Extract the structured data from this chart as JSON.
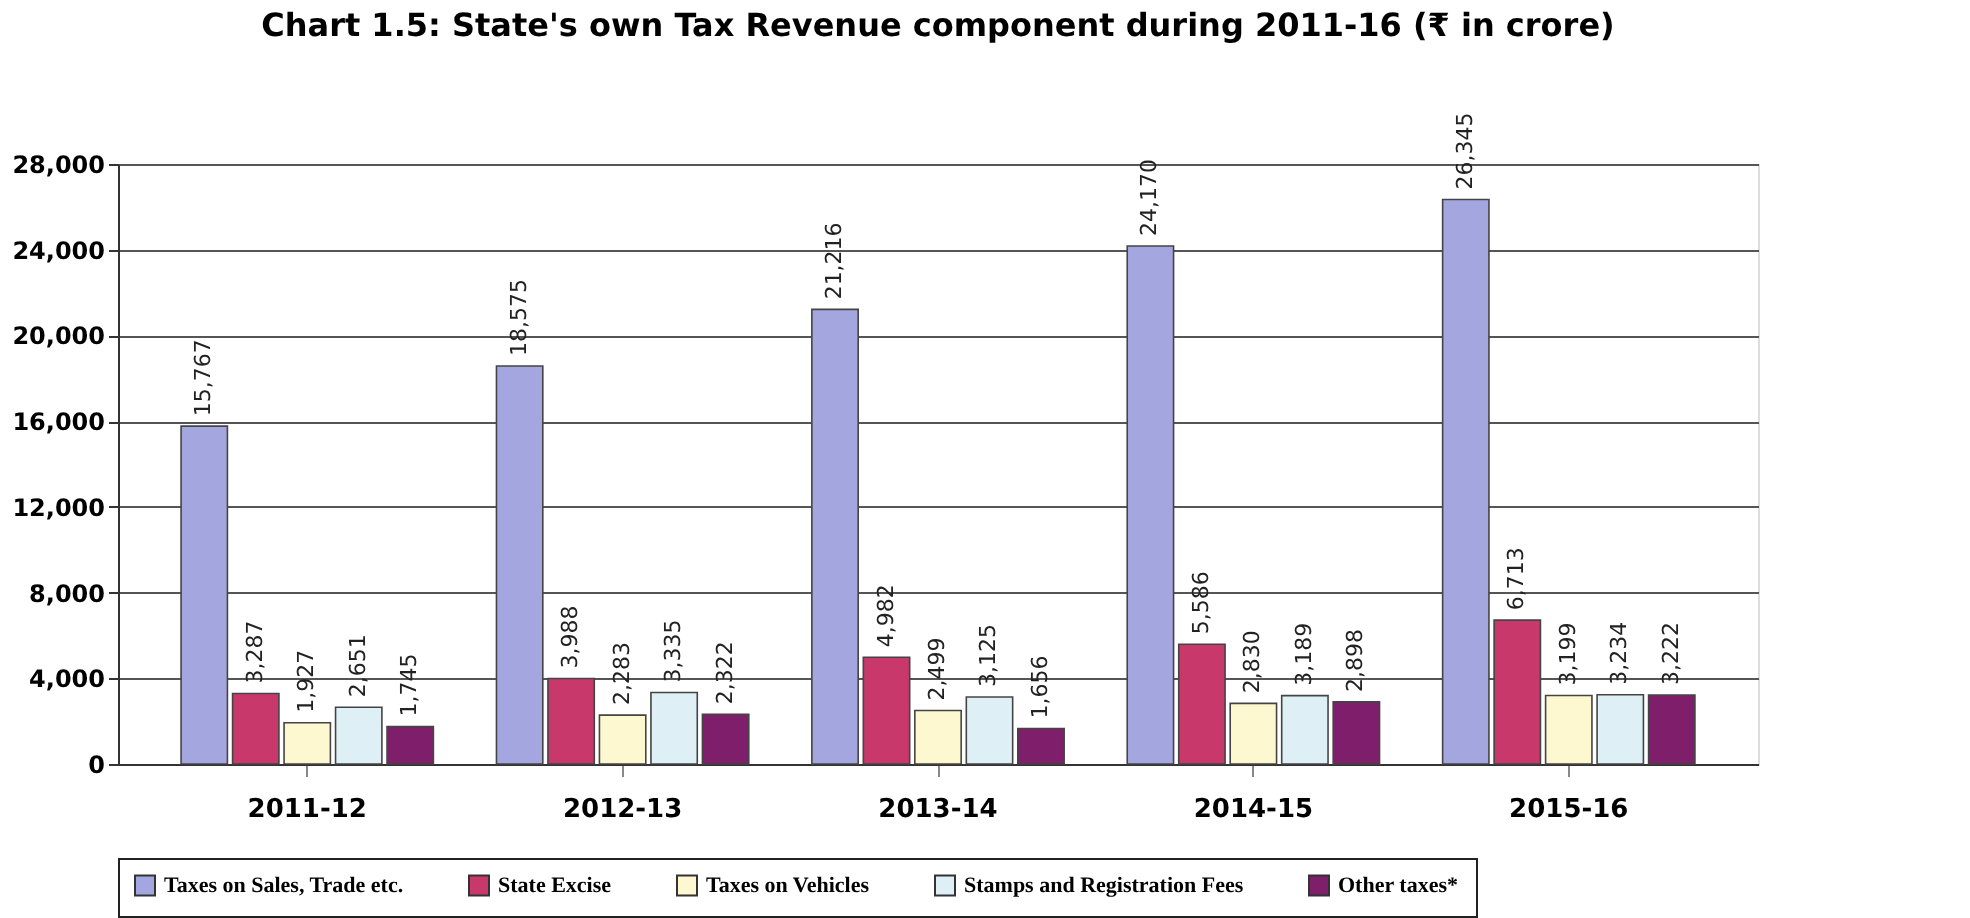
{
  "chart_data": {
    "type": "bar",
    "title": "Chart 1.5: State's own Tax Revenue component during 2011-16 (₹ in crore)",
    "categories": [
      "2011-12",
      "2012-13",
      "2013-14",
      "2014-15",
      "2015-16"
    ],
    "series": [
      {
        "name": "Taxes on Sales, Trade etc.",
        "color": "#a4a6df",
        "values": [
          15767,
          18575,
          21216,
          24170,
          26345
        ],
        "value_labels": [
          "15,767",
          "18,575",
          "21,216",
          "24,170",
          "26,345"
        ]
      },
      {
        "name": "State Excise",
        "color": "#c8386a",
        "values": [
          3287,
          3988,
          4982,
          5586,
          6713
        ],
        "value_labels": [
          "3,287",
          "3,988",
          "4,982",
          "5,586",
          "6,713"
        ]
      },
      {
        "name": "Taxes on Vehicles",
        "color": "#fdf8d0",
        "values": [
          1927,
          2283,
          2499,
          2830,
          3199
        ],
        "value_labels": [
          "1,927",
          "2,283",
          "2,499",
          "2,830",
          "3,199"
        ]
      },
      {
        "name": "Stamps and Registration Fees",
        "color": "#def0f6",
        "values": [
          2651,
          3335,
          3125,
          3189,
          3234
        ],
        "value_labels": [
          "2,651",
          "3,335",
          "3,125",
          "3,189",
          "3,234"
        ]
      },
      {
        "name": "Other taxes*",
        "color": "#7f1f6b",
        "values": [
          1745,
          2322,
          1656,
          2898,
          3222
        ],
        "value_labels": [
          "1,745",
          "2,322",
          "1,656",
          "2,898",
          "3,222"
        ]
      }
    ],
    "ylim": [
      0,
      28000
    ],
    "yticks": [
      0,
      {
        "value": 4000,
        "label": "4,000"
      },
      {
        "value": 8000,
        "label": "8,000"
      },
      {
        "value": 12000,
        "label": "12,000"
      },
      {
        "value": 16000,
        "label": "16,000"
      },
      {
        "value": 20000,
        "label": "20,000"
      },
      {
        "value": 24000,
        "label": "24,000"
      },
      {
        "value": 28000,
        "label": "28,000"
      }
    ],
    "grid": "y",
    "legend": "bottom"
  }
}
